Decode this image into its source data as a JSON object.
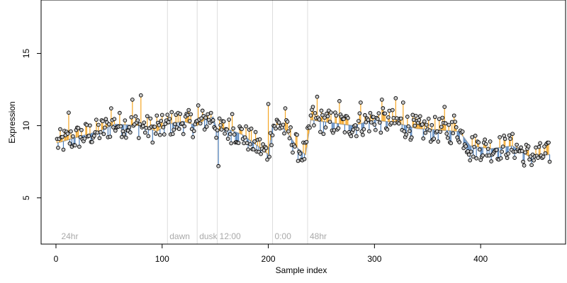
{
  "chart_data": {
    "type": "scatter",
    "title": "",
    "xlabel": "Sample index",
    "ylabel": "Expression",
    "xlim": [
      -14,
      480
    ],
    "ylim": [
      1.8,
      18.7
    ],
    "xticks": [
      0,
      100,
      200,
      300,
      400
    ],
    "yticks": [
      5,
      10,
      15
    ],
    "grid": false,
    "n_points": 465,
    "baseline_color": "#4f81bd",
    "above_color": "#f5a623",
    "smooth_color": "#a9a9a9",
    "point_fill": "#c8c8c8",
    "annotations": [
      {
        "label": "24hr",
        "x": 3,
        "line": false
      },
      {
        "label": "dawn",
        "x": 105,
        "line": true
      },
      {
        "label": "dusk",
        "x": 133,
        "line": true
      },
      {
        "label": "12:00",
        "x": 152,
        "line": true
      },
      {
        "label": "0:00",
        "x": 204,
        "line": true
      },
      {
        "label": "48hr",
        "x": 237,
        "line": true
      }
    ],
    "trend_knots": [
      [
        1,
        8.8
      ],
      [
        20,
        9.2
      ],
      [
        40,
        9.6
      ],
      [
        55,
        10.1
      ],
      [
        80,
        10.0
      ],
      [
        95,
        9.6
      ],
      [
        105,
        10.1
      ],
      [
        120,
        10.3
      ],
      [
        133,
        10.0
      ],
      [
        140,
        10.4
      ],
      [
        148,
        10.6
      ],
      [
        152,
        9.6
      ],
      [
        160,
        9.8
      ],
      [
        175,
        9.4
      ],
      [
        190,
        8.6
      ],
      [
        200,
        8.0
      ],
      [
        204,
        10.0
      ],
      [
        212,
        10.1
      ],
      [
        220,
        9.3
      ],
      [
        228,
        8.4
      ],
      [
        235,
        8.0
      ],
      [
        240,
        10.4
      ],
      [
        260,
        10.2
      ],
      [
        280,
        10.0
      ],
      [
        300,
        10.4
      ],
      [
        320,
        10.2
      ],
      [
        340,
        9.8
      ],
      [
        360,
        9.7
      ],
      [
        380,
        9.6
      ],
      [
        390,
        8.6
      ],
      [
        410,
        8.4
      ],
      [
        430,
        8.6
      ],
      [
        445,
        7.9
      ],
      [
        465,
        8.0
      ]
    ],
    "highlights": [
      [
        80,
        12.1
      ],
      [
        72,
        11.8
      ],
      [
        52,
        11.2
      ],
      [
        246,
        12.0
      ],
      [
        242,
        11.3
      ],
      [
        267,
        11.7
      ],
      [
        287,
        11.6
      ],
      [
        307,
        11.8
      ],
      [
        320,
        11.9
      ],
      [
        327,
        11.6
      ],
      [
        366,
        11.3
      ],
      [
        200,
        11.5
      ],
      [
        216,
        11.2
      ],
      [
        166,
        10.8
      ],
      [
        153,
        7.2
      ],
      [
        232,
        7.6
      ],
      [
        440,
        7.5
      ],
      [
        465,
        7.5
      ],
      [
        12,
        10.9
      ],
      [
        95,
        10.7
      ],
      [
        134,
        11.4
      ],
      [
        390,
        7.6
      ],
      [
        420,
        8.2
      ],
      [
        375,
        10.7
      ]
    ]
  }
}
